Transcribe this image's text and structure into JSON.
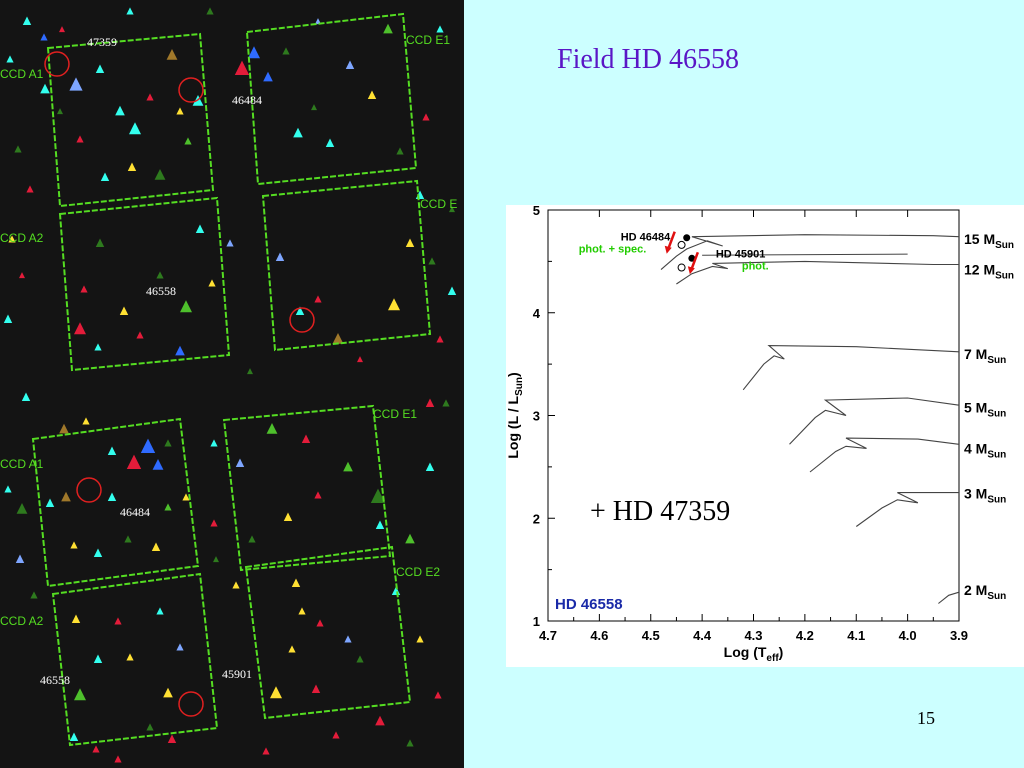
{
  "slide": {
    "title": "Field HD 46558",
    "note": "+ HD 47359",
    "page_number": "15"
  },
  "colors": {
    "slide_bg": "#ccffff",
    "title": "#5a16c6",
    "field_bg": "#141414",
    "ccd_frame": "#55dd22",
    "marker_circle": "#e02020",
    "hr_label_dark": "#000000",
    "hr_label_green": "#22cc00",
    "hr_field_label": "#1a2aa8",
    "hr_arrow": "#e01010",
    "star_cyan": "#33ffee",
    "star_blue": "#2f6bff",
    "star_light_blue": "#7ea6ff",
    "star_red": "#e31c3a",
    "star_yellow": "#ffe033",
    "star_dkgreen": "#2e7a1e",
    "star_brown": "#a0782a",
    "star_green": "#4ec02c",
    "star_white": "#ffffff"
  },
  "fields": [
    {
      "name": "top",
      "ccd_labels": [
        "CCD A1",
        "CCD E1",
        "CCD A2",
        "CCD E"
      ],
      "star_labels": [
        "47359",
        "46484",
        "46558"
      ]
    },
    {
      "name": "bottom",
      "ccd_labels": [
        "CCD A1",
        "CCD E1",
        "CCD A2",
        "CCD E2"
      ],
      "star_labels": [
        "46484",
        "46558",
        "45901"
      ]
    }
  ],
  "hr_diagram": {
    "field_label": "HD 46558",
    "xlabel": "Log (T",
    "xlabel_sub": "eff",
    "xlabel_tail": ")",
    "ylabel": "Log (L / L",
    "ylabel_sub": "Sun",
    "ylabel_tail": ")",
    "xlim": [
      4.7,
      3.9
    ],
    "ylim": [
      1,
      5
    ],
    "x_ticks": [
      "4.7",
      "4.6",
      "4.5",
      "4.4",
      "4.3",
      "4.2",
      "4.1",
      "4.0",
      "3.9"
    ],
    "y_ticks": [
      "1",
      "2",
      "3",
      "4",
      "5"
    ],
    "stars": [
      {
        "name": "HD 46484",
        "method": "phot. + spec.",
        "logT": 4.43,
        "logL": 4.73,
        "logT_open": 4.44,
        "logL_open": 4.66
      },
      {
        "name": "HD 45901",
        "method": "phot.",
        "logT": 4.42,
        "logL": 4.53,
        "logT_open": 4.44,
        "logL_open": 4.44
      }
    ],
    "tracks": [
      {
        "mass": "15",
        "unit": "M",
        "unit_sub": "Sun",
        "label_logL": 4.72
      },
      {
        "mass": "12",
        "unit": "M",
        "unit_sub": "Sun",
        "label_logL": 4.42
      },
      {
        "mass": "7",
        "unit": "M",
        "unit_sub": "Sun",
        "label_logL": 3.6
      },
      {
        "mass": "5",
        "unit": "M",
        "unit_sub": "Sun",
        "label_logL": 3.08
      },
      {
        "mass": "4",
        "unit": "M",
        "unit_sub": "Sun",
        "label_logL": 2.68
      },
      {
        "mass": "3",
        "unit": "M",
        "unit_sub": "Sun",
        "label_logL": 2.24
      },
      {
        "mass": "2",
        "unit": "M",
        "unit_sub": "Sun",
        "label_logL": 1.3
      }
    ]
  }
}
